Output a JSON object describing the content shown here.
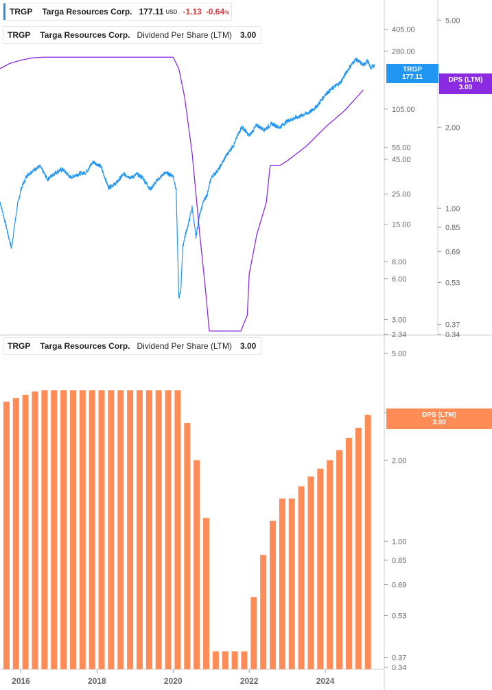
{
  "colors": {
    "price": "#2196f3",
    "dps_line": "#8a2be2",
    "dps_bar": "#ff8c57",
    "down": "#e0393e",
    "grid": "#cccccc"
  },
  "legends": {
    "price": {
      "ticker": "TRGP",
      "name": "Targa Resources Corp.",
      "price": "177.11",
      "currency": "USD",
      "change": "-1.13",
      "change_pct": "-0.64",
      "pct_sign": "%"
    },
    "dps_top": {
      "ticker": "TRGP",
      "name": "Targa Resources Corp.",
      "metric": "Dividend Per Share (LTM)",
      "value": "3.00"
    },
    "dps_bottom": {
      "ticker": "TRGP",
      "name": "Targa Resources Corp.",
      "metric": "Dividend Per Share (LTM)",
      "value": "3.00"
    }
  },
  "tags": {
    "price": {
      "line1": "TRGP",
      "line2": "177.11"
    },
    "dps_top": {
      "line1": "DPS (LTM)",
      "line2": "3.00"
    },
    "dps_bottom": {
      "line1": "DPS (LTM)",
      "line2": "3.00"
    }
  },
  "chart_data": [
    {
      "type": "line",
      "title": "",
      "scale": "log",
      "series": [
        {
          "name": "Targa Resources Corp.",
          "x": [
            2015.0,
            2015.15,
            2015.3,
            2015.45,
            2015.6,
            2015.75,
            2015.9,
            2016.0,
            2016.15,
            2016.3,
            2016.5,
            2016.7,
            2016.9,
            2017.1,
            2017.3,
            2017.5,
            2017.7,
            2017.9,
            2018.1,
            2018.3,
            2018.5,
            2018.7,
            2018.9,
            2019.05,
            2019.2,
            2019.4,
            2019.6,
            2019.8,
            2020.0,
            2020.08,
            2020.15,
            2020.2,
            2020.25,
            2020.3,
            2020.4,
            2020.5,
            2020.6,
            2020.7,
            2020.8,
            2020.9,
            2021.0,
            2021.2,
            2021.4,
            2021.6,
            2021.8,
            2022.0,
            2022.2,
            2022.4,
            2022.6,
            2022.8,
            2023.0,
            2023.2,
            2023.4,
            2023.6,
            2023.8,
            2024.0,
            2024.2,
            2024.4,
            2024.6,
            2024.8,
            2025.0,
            2025.1,
            2025.2,
            2025.3
          ],
          "y": [
            62,
            55,
            30,
            22,
            15,
            10,
            20,
            27,
            34,
            37,
            40,
            32,
            36,
            38,
            33,
            35,
            36,
            43,
            40,
            28,
            30,
            35,
            33,
            35,
            33,
            27,
            32,
            36,
            34,
            27,
            4.3,
            4.8,
            10,
            12,
            15,
            20,
            12,
            18,
            22,
            25,
            33,
            38,
            48,
            58,
            78,
            67,
            80,
            74,
            82,
            77,
            86,
            90,
            95,
            100,
            112,
            135,
            150,
            165,
            205,
            245,
            220,
            238,
            210,
            222
          ]
        }
      ],
      "y_ticks": [
        "405.00",
        "280.00",
        "105.00",
        "55.00",
        "45.00",
        "25.00",
        "15.00",
        "8.00",
        "6.00",
        "3.00",
        "2.34"
      ],
      "ylim": [
        2.34,
        590
      ],
      "xlim": [
        2015.45,
        2025.55
      ],
      "last_value": 177.11
    },
    {
      "type": "line",
      "title": "",
      "scale": "log",
      "series": [
        {
          "name": "Dividend Per Share (LTM)",
          "x": [
            2015.45,
            2015.7,
            2016.0,
            2016.3,
            2016.6,
            2017.0,
            2018.0,
            2019.0,
            2019.7,
            2020.0,
            2020.15,
            2020.3,
            2020.5,
            2020.7,
            2020.85,
            2020.95,
            2021.0,
            2021.5,
            2021.7,
            2021.78,
            2021.95,
            2022.0,
            2022.2,
            2022.45,
            2022.55,
            2022.8,
            2023.0,
            2023.5,
            2024.0,
            2024.5,
            2025.0
          ],
          "y": [
            3.3,
            3.45,
            3.55,
            3.62,
            3.64,
            3.64,
            3.64,
            3.64,
            3.64,
            3.64,
            3.3,
            2.6,
            1.6,
            0.8,
            0.5,
            0.35,
            0.35,
            0.35,
            0.35,
            0.35,
            0.4,
            0.57,
            0.8,
            1.05,
            1.44,
            1.44,
            1.5,
            1.7,
            2.0,
            2.3,
            2.75
          ]
        }
      ],
      "y_ticks": [
        "5.00",
        "2.00",
        "1.00",
        "0.85",
        "0.69",
        "0.53",
        "0.37",
        "0.34"
      ],
      "ylim": [
        0.34,
        5.6
      ],
      "last_value": 3.0
    },
    {
      "type": "bar",
      "title": "",
      "scale": "log",
      "series": [
        {
          "name": "Dividend Per Share (LTM)",
          "x": [
            2015.62,
            2015.87,
            2016.12,
            2016.37,
            2016.62,
            2016.87,
            2017.12,
            2017.37,
            2017.62,
            2017.87,
            2018.12,
            2018.37,
            2018.62,
            2018.87,
            2019.12,
            2019.37,
            2019.62,
            2019.87,
            2020.12,
            2020.37,
            2020.62,
            2020.87,
            2021.12,
            2021.37,
            2021.62,
            2021.87,
            2022.12,
            2022.37,
            2022.62,
            2022.87,
            2023.12,
            2023.37,
            2023.62,
            2023.87,
            2024.12,
            2024.37,
            2024.62,
            2024.87,
            2025.12
          ],
          "values": [
            3.3,
            3.4,
            3.5,
            3.6,
            3.64,
            3.64,
            3.64,
            3.64,
            3.64,
            3.64,
            3.64,
            3.64,
            3.64,
            3.64,
            3.64,
            3.64,
            3.64,
            3.64,
            3.64,
            2.75,
            2.0,
            1.22,
            0.39,
            0.39,
            0.39,
            0.39,
            0.62,
            0.89,
            1.19,
            1.44,
            1.44,
            1.6,
            1.74,
            1.86,
            2.0,
            2.18,
            2.42,
            2.64,
            2.95
          ]
        }
      ],
      "x_ticks": [
        "2016",
        "2018",
        "2020",
        "2022",
        "2024"
      ],
      "y_ticks": [
        "5.00",
        "3.00",
        "2.00",
        "1.00",
        "0.85",
        "0.69",
        "0.53",
        "0.37",
        "0.34"
      ],
      "ylim": [
        0.34,
        5.6
      ],
      "last_value": 3.0
    }
  ]
}
